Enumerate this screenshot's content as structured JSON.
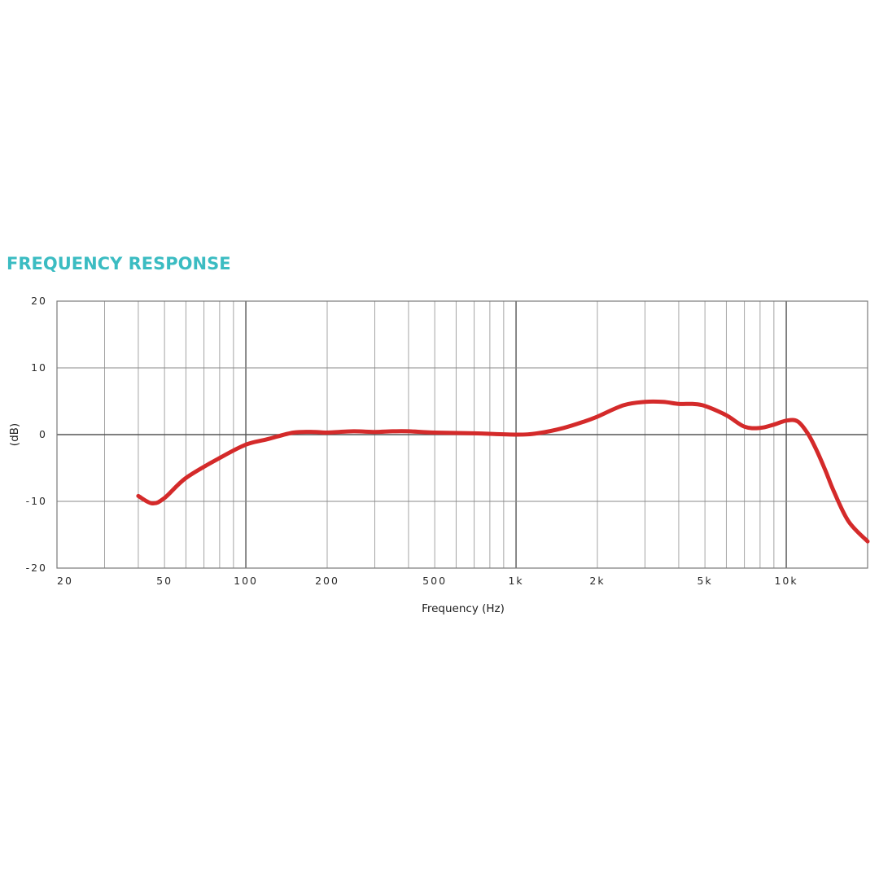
{
  "title": "FREQUENCY RESPONSE",
  "chart_data": {
    "type": "line",
    "title": "FREQUENCY RESPONSE",
    "xlabel": "Frequency (Hz)",
    "ylabel": "(dB)",
    "xscale": "log",
    "xlim": [
      20,
      20000
    ],
    "ylim": [
      -20,
      20
    ],
    "x_ticks": [
      {
        "value": 20,
        "label": "20"
      },
      {
        "value": 50,
        "label": "50"
      },
      {
        "value": 100,
        "label": "100"
      },
      {
        "value": 200,
        "label": "200"
      },
      {
        "value": 500,
        "label": "500"
      },
      {
        "value": 1000,
        "label": "1k"
      },
      {
        "value": 2000,
        "label": "2k"
      },
      {
        "value": 5000,
        "label": "5k"
      },
      {
        "value": 10000,
        "label": "10k"
      }
    ],
    "y_ticks": [
      {
        "value": 20,
        "label": "20"
      },
      {
        "value": 10,
        "label": "10"
      },
      {
        "value": 0,
        "label": "0"
      },
      {
        "value": -10,
        "label": "-10"
      },
      {
        "value": -20,
        "label": "-20"
      }
    ],
    "grid": true,
    "series": [
      {
        "color": "#d42a2a",
        "x": [
          40,
          45,
          50,
          60,
          80,
          100,
          120,
          150,
          180,
          200,
          250,
          300,
          350,
          400,
          500,
          700,
          1000,
          1200,
          1500,
          1800,
          2000,
          2500,
          3000,
          3500,
          4000,
          4500,
          5000,
          6000,
          7000,
          8000,
          9000,
          10000,
          11000,
          12000,
          13000,
          14000,
          15000,
          17000,
          20000
        ],
        "y": [
          -9.2,
          -10.3,
          -9.5,
          -6.5,
          -3.5,
          -1.5,
          -0.7,
          0.3,
          0.4,
          0.3,
          0.5,
          0.4,
          0.5,
          0.5,
          0.3,
          0.2,
          0.0,
          0.2,
          1.0,
          2.0,
          2.7,
          4.4,
          4.9,
          4.9,
          4.6,
          4.6,
          4.3,
          2.9,
          1.2,
          1.0,
          1.5,
          2.1,
          2.0,
          0.2,
          -2.5,
          -5.5,
          -8.5,
          -13.0,
          -16.0
        ]
      }
    ]
  }
}
